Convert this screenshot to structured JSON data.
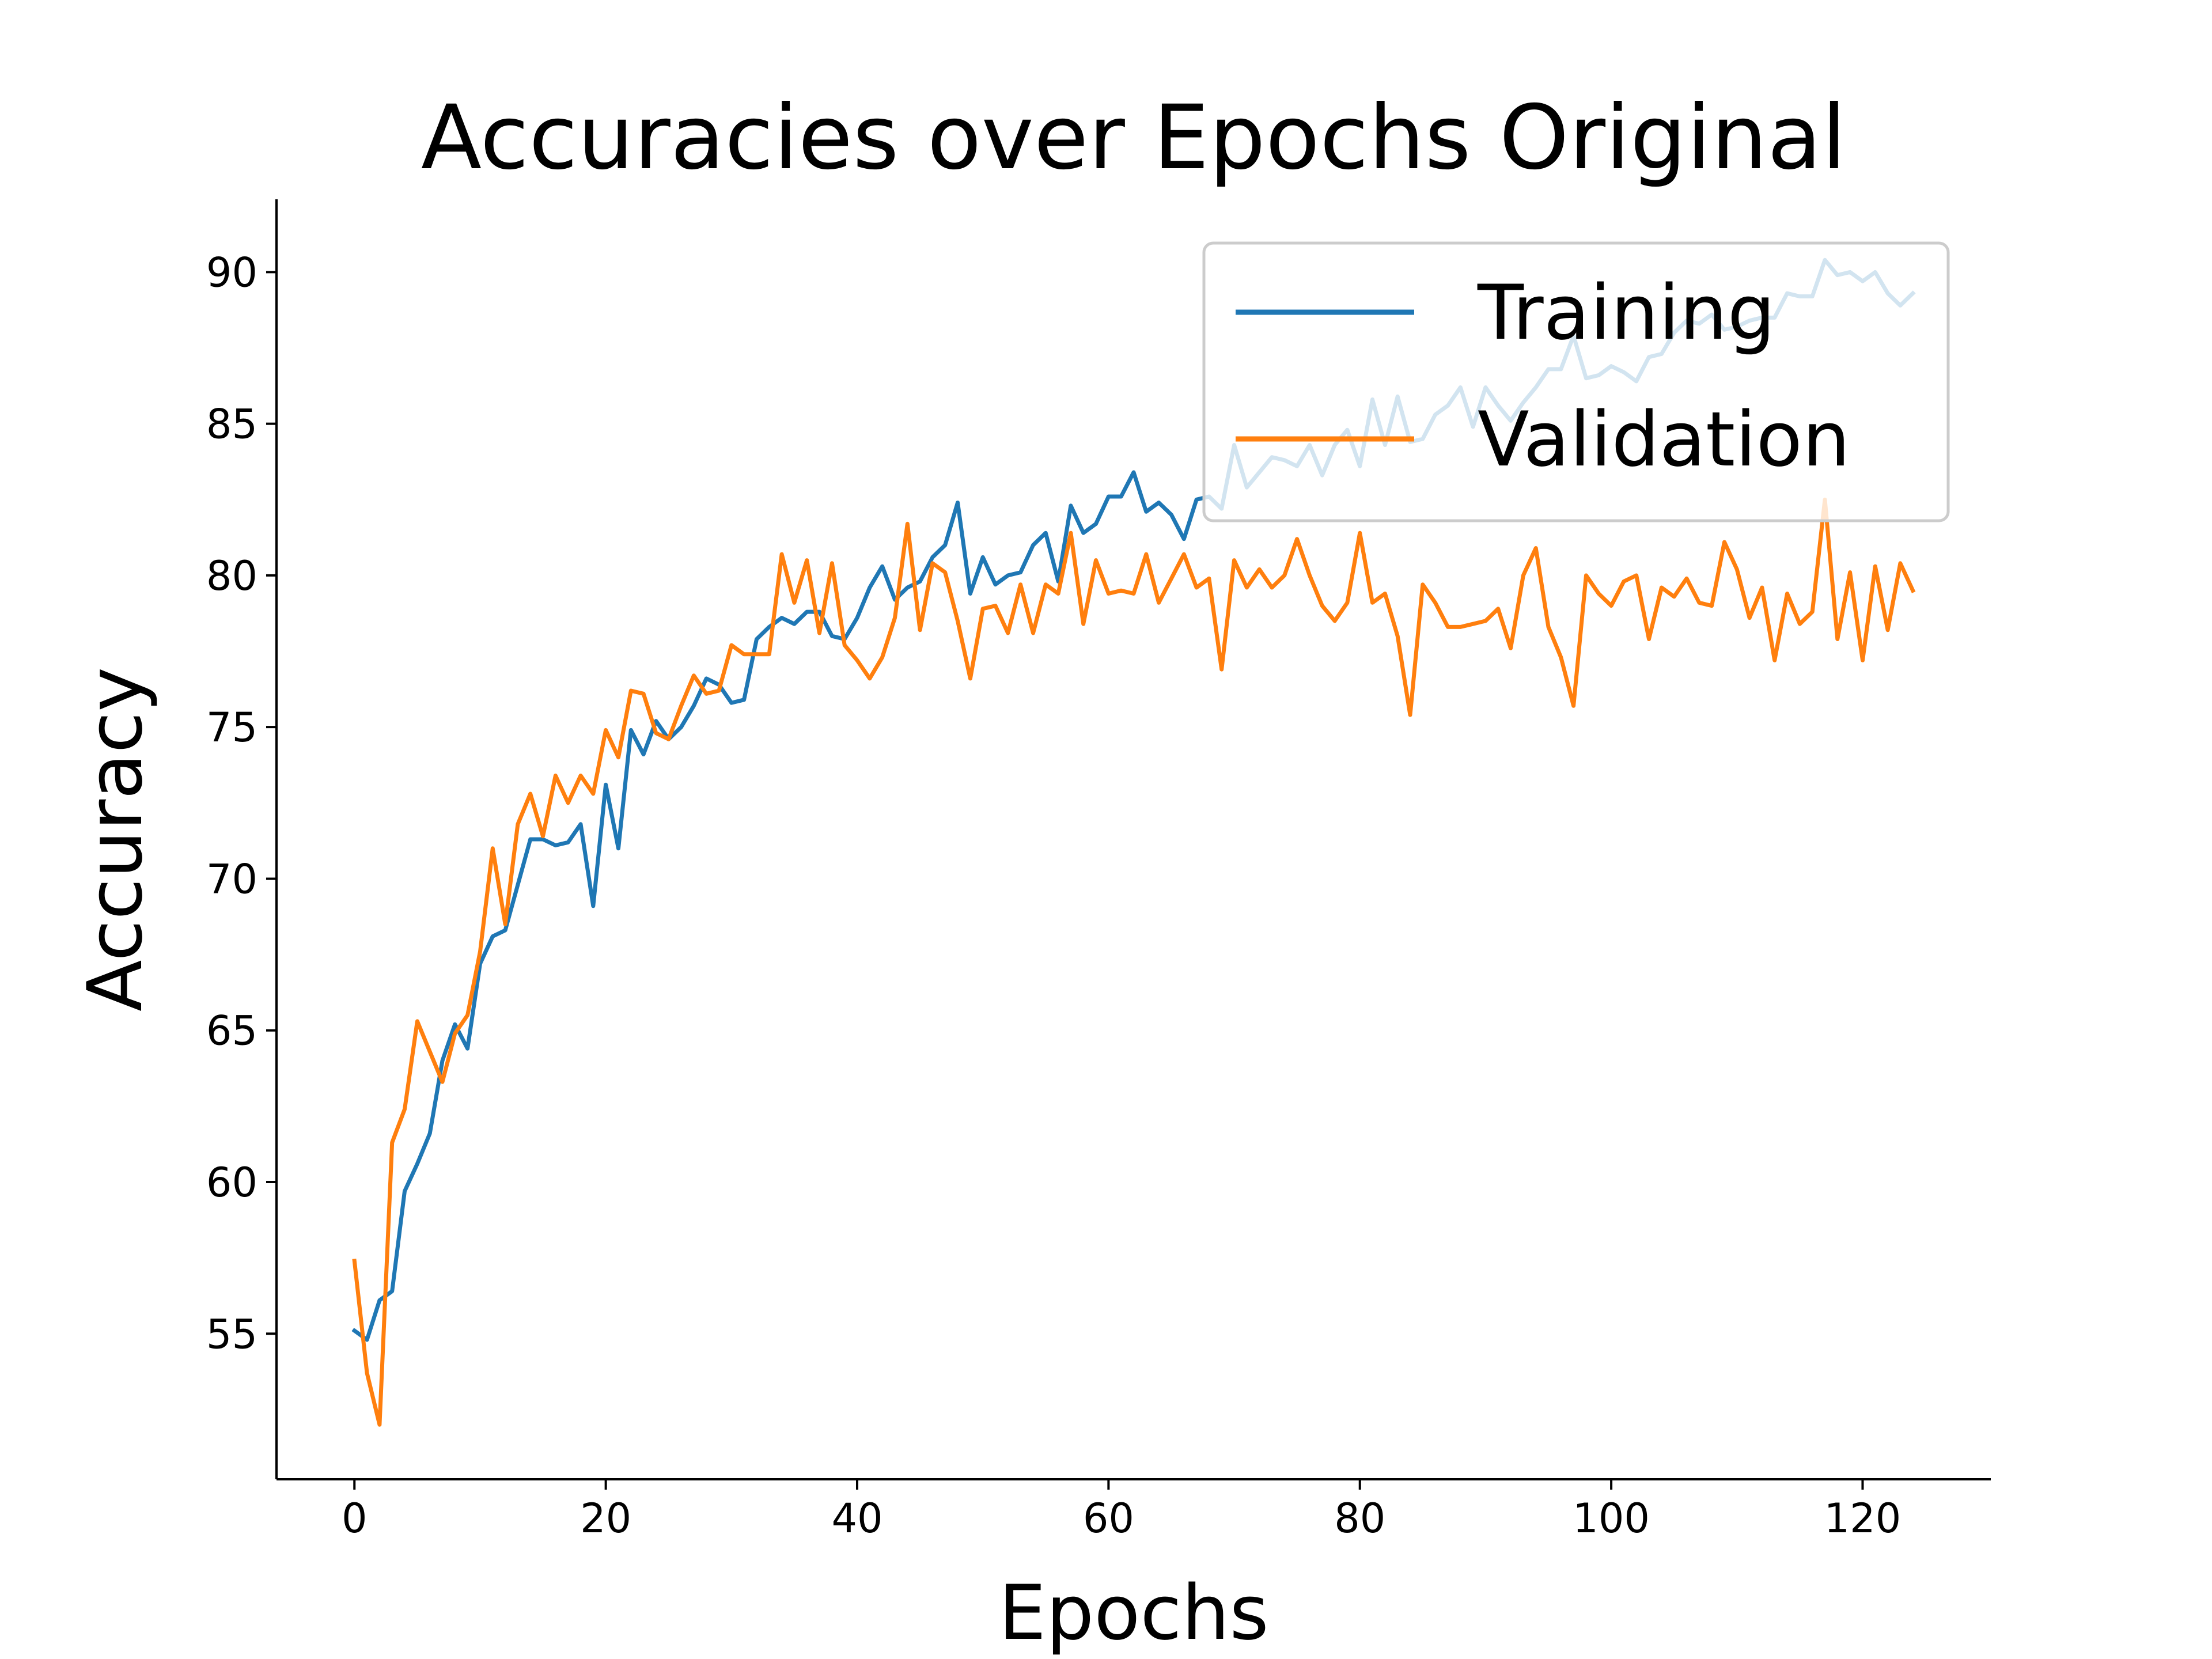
{
  "chart_data": {
    "type": "line",
    "title": "Accuracies over Epochs Original",
    "xlabel": "Epochs",
    "ylabel": "Accuracy",
    "xlim": [
      -6.2,
      130.2
    ],
    "ylim": [
      50.2,
      92.4
    ],
    "xticks": [
      0,
      20,
      40,
      60,
      80,
      100,
      120
    ],
    "yticks": [
      55,
      60,
      65,
      70,
      75,
      80,
      85,
      90
    ],
    "grid": false,
    "legend": "top-right",
    "series": [
      {
        "name": "Training",
        "color": "#1f77b4",
        "values": [
          55.1,
          54.8,
          56.1,
          56.4,
          59.7,
          60.6,
          61.6,
          64.0,
          65.2,
          64.4,
          67.2,
          68.1,
          68.3,
          69.8,
          71.3,
          71.3,
          71.1,
          71.2,
          71.8,
          69.1,
          73.1,
          71.0,
          74.9,
          74.1,
          75.2,
          74.6,
          75.0,
          75.7,
          76.6,
          76.4,
          75.8,
          75.9,
          77.9,
          78.3,
          78.6,
          78.4,
          78.8,
          78.8,
          78.0,
          77.9,
          78.6,
          79.6,
          80.3,
          79.2,
          79.6,
          79.8,
          80.6,
          81.0,
          82.4,
          79.4,
          80.6,
          79.7,
          80.0,
          80.1,
          81.0,
          81.4,
          79.8,
          82.3,
          81.4,
          81.7,
          82.6,
          82.6,
          83.4,
          82.1,
          82.4,
          82.0,
          81.2,
          82.5,
          82.6,
          82.2,
          84.3,
          82.9,
          83.4,
          83.9,
          83.8,
          83.6,
          84.3,
          83.3,
          84.3,
          84.8,
          83.6,
          85.8,
          84.3,
          85.9,
          84.4,
          84.5,
          85.3,
          85.6,
          86.2,
          84.9,
          86.2,
          85.6,
          85.1,
          85.7,
          86.2,
          86.8,
          86.8,
          87.9,
          86.5,
          86.6,
          86.9,
          86.7,
          86.4,
          87.2,
          87.3,
          88.0,
          88.4,
          88.3,
          88.6,
          88.1,
          88.2,
          88.4,
          88.5,
          88.5,
          89.3,
          89.2,
          89.2,
          90.4,
          89.9,
          90.0,
          89.7,
          90.0,
          89.3,
          88.9,
          89.3
        ]
      },
      {
        "name": "Validation",
        "color": "#ff7f0e",
        "values": [
          57.4,
          53.7,
          52.0,
          61.3,
          62.4,
          65.3,
          64.3,
          63.3,
          64.9,
          65.5,
          67.6,
          71.0,
          68.5,
          71.8,
          72.8,
          71.4,
          73.4,
          72.5,
          73.4,
          72.8,
          74.9,
          74.0,
          76.2,
          76.1,
          74.8,
          74.6,
          75.7,
          76.7,
          76.1,
          76.2,
          77.7,
          77.4,
          77.4,
          77.4,
          80.7,
          79.1,
          80.5,
          78.1,
          80.4,
          77.7,
          77.2,
          76.6,
          77.3,
          78.6,
          81.7,
          78.2,
          80.4,
          80.1,
          78.5,
          76.6,
          78.9,
          79.0,
          78.1,
          79.7,
          78.1,
          79.7,
          79.4,
          81.4,
          78.4,
          80.5,
          79.4,
          79.5,
          79.4,
          80.7,
          79.1,
          79.9,
          80.7,
          79.6,
          79.9,
          76.9,
          80.5,
          79.6,
          80.2,
          79.6,
          80.0,
          81.2,
          80.0,
          79.0,
          78.5,
          79.1,
          81.4,
          79.1,
          79.4,
          78.0,
          75.4,
          79.7,
          79.1,
          78.3,
          78.3,
          78.4,
          78.5,
          78.9,
          77.6,
          80.0,
          80.9,
          78.3,
          77.3,
          75.7,
          80.0,
          79.4,
          79.0,
          79.8,
          80.0,
          77.9,
          79.6,
          79.3,
          79.9,
          79.1,
          79.0,
          81.1,
          80.2,
          78.6,
          79.6,
          77.2,
          79.4,
          78.4,
          78.8,
          82.5,
          77.9,
          80.1,
          77.2,
          80.3,
          78.2,
          80.4,
          79.5
        ]
      }
    ]
  }
}
